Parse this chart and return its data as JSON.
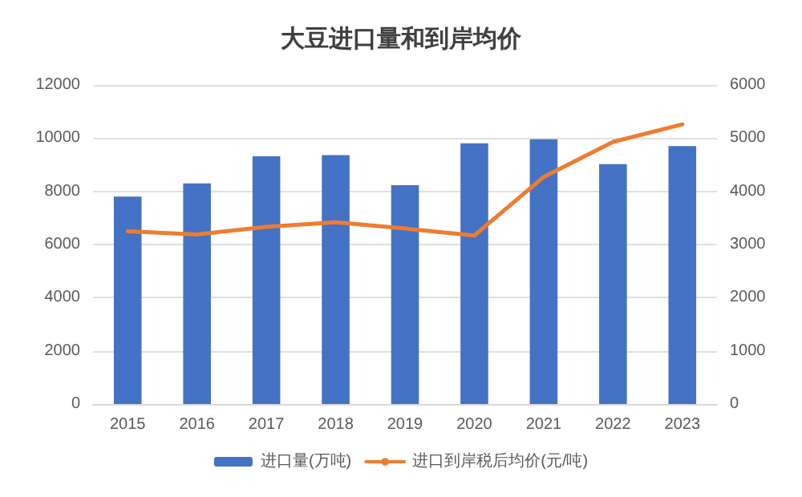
{
  "chart_data": {
    "type": "bar",
    "title": "大豆进口量和到岸均价",
    "categories": [
      "2015",
      "2016",
      "2017",
      "2018",
      "2019",
      "2020",
      "2021",
      "2022",
      "2023"
    ],
    "series": [
      {
        "name": "进口量(万吨)",
        "color": "#4472c4",
        "values": [
          7800,
          8300,
          9320,
          9360,
          8230,
          9810,
          9960,
          9020,
          9700
        ]
      },
      {
        "name": "进口到岸税后均价(元/吨)",
        "type": "line",
        "axis": "y2",
        "color": "#ed7d31",
        "values": [
          3250,
          3190,
          3330,
          3420,
          3300,
          3170,
          4270,
          4930,
          5260
        ]
      }
    ],
    "ylim": [
      0,
      12000
    ],
    "yticks": [
      0,
      2000,
      4000,
      6000,
      8000,
      10000,
      12000
    ],
    "y2lim": [
      0,
      6000
    ],
    "y2ticks": [
      0,
      1000,
      2000,
      3000,
      4000,
      5000,
      6000
    ],
    "grid": "y",
    "legend": "bottom",
    "marker": "none"
  }
}
